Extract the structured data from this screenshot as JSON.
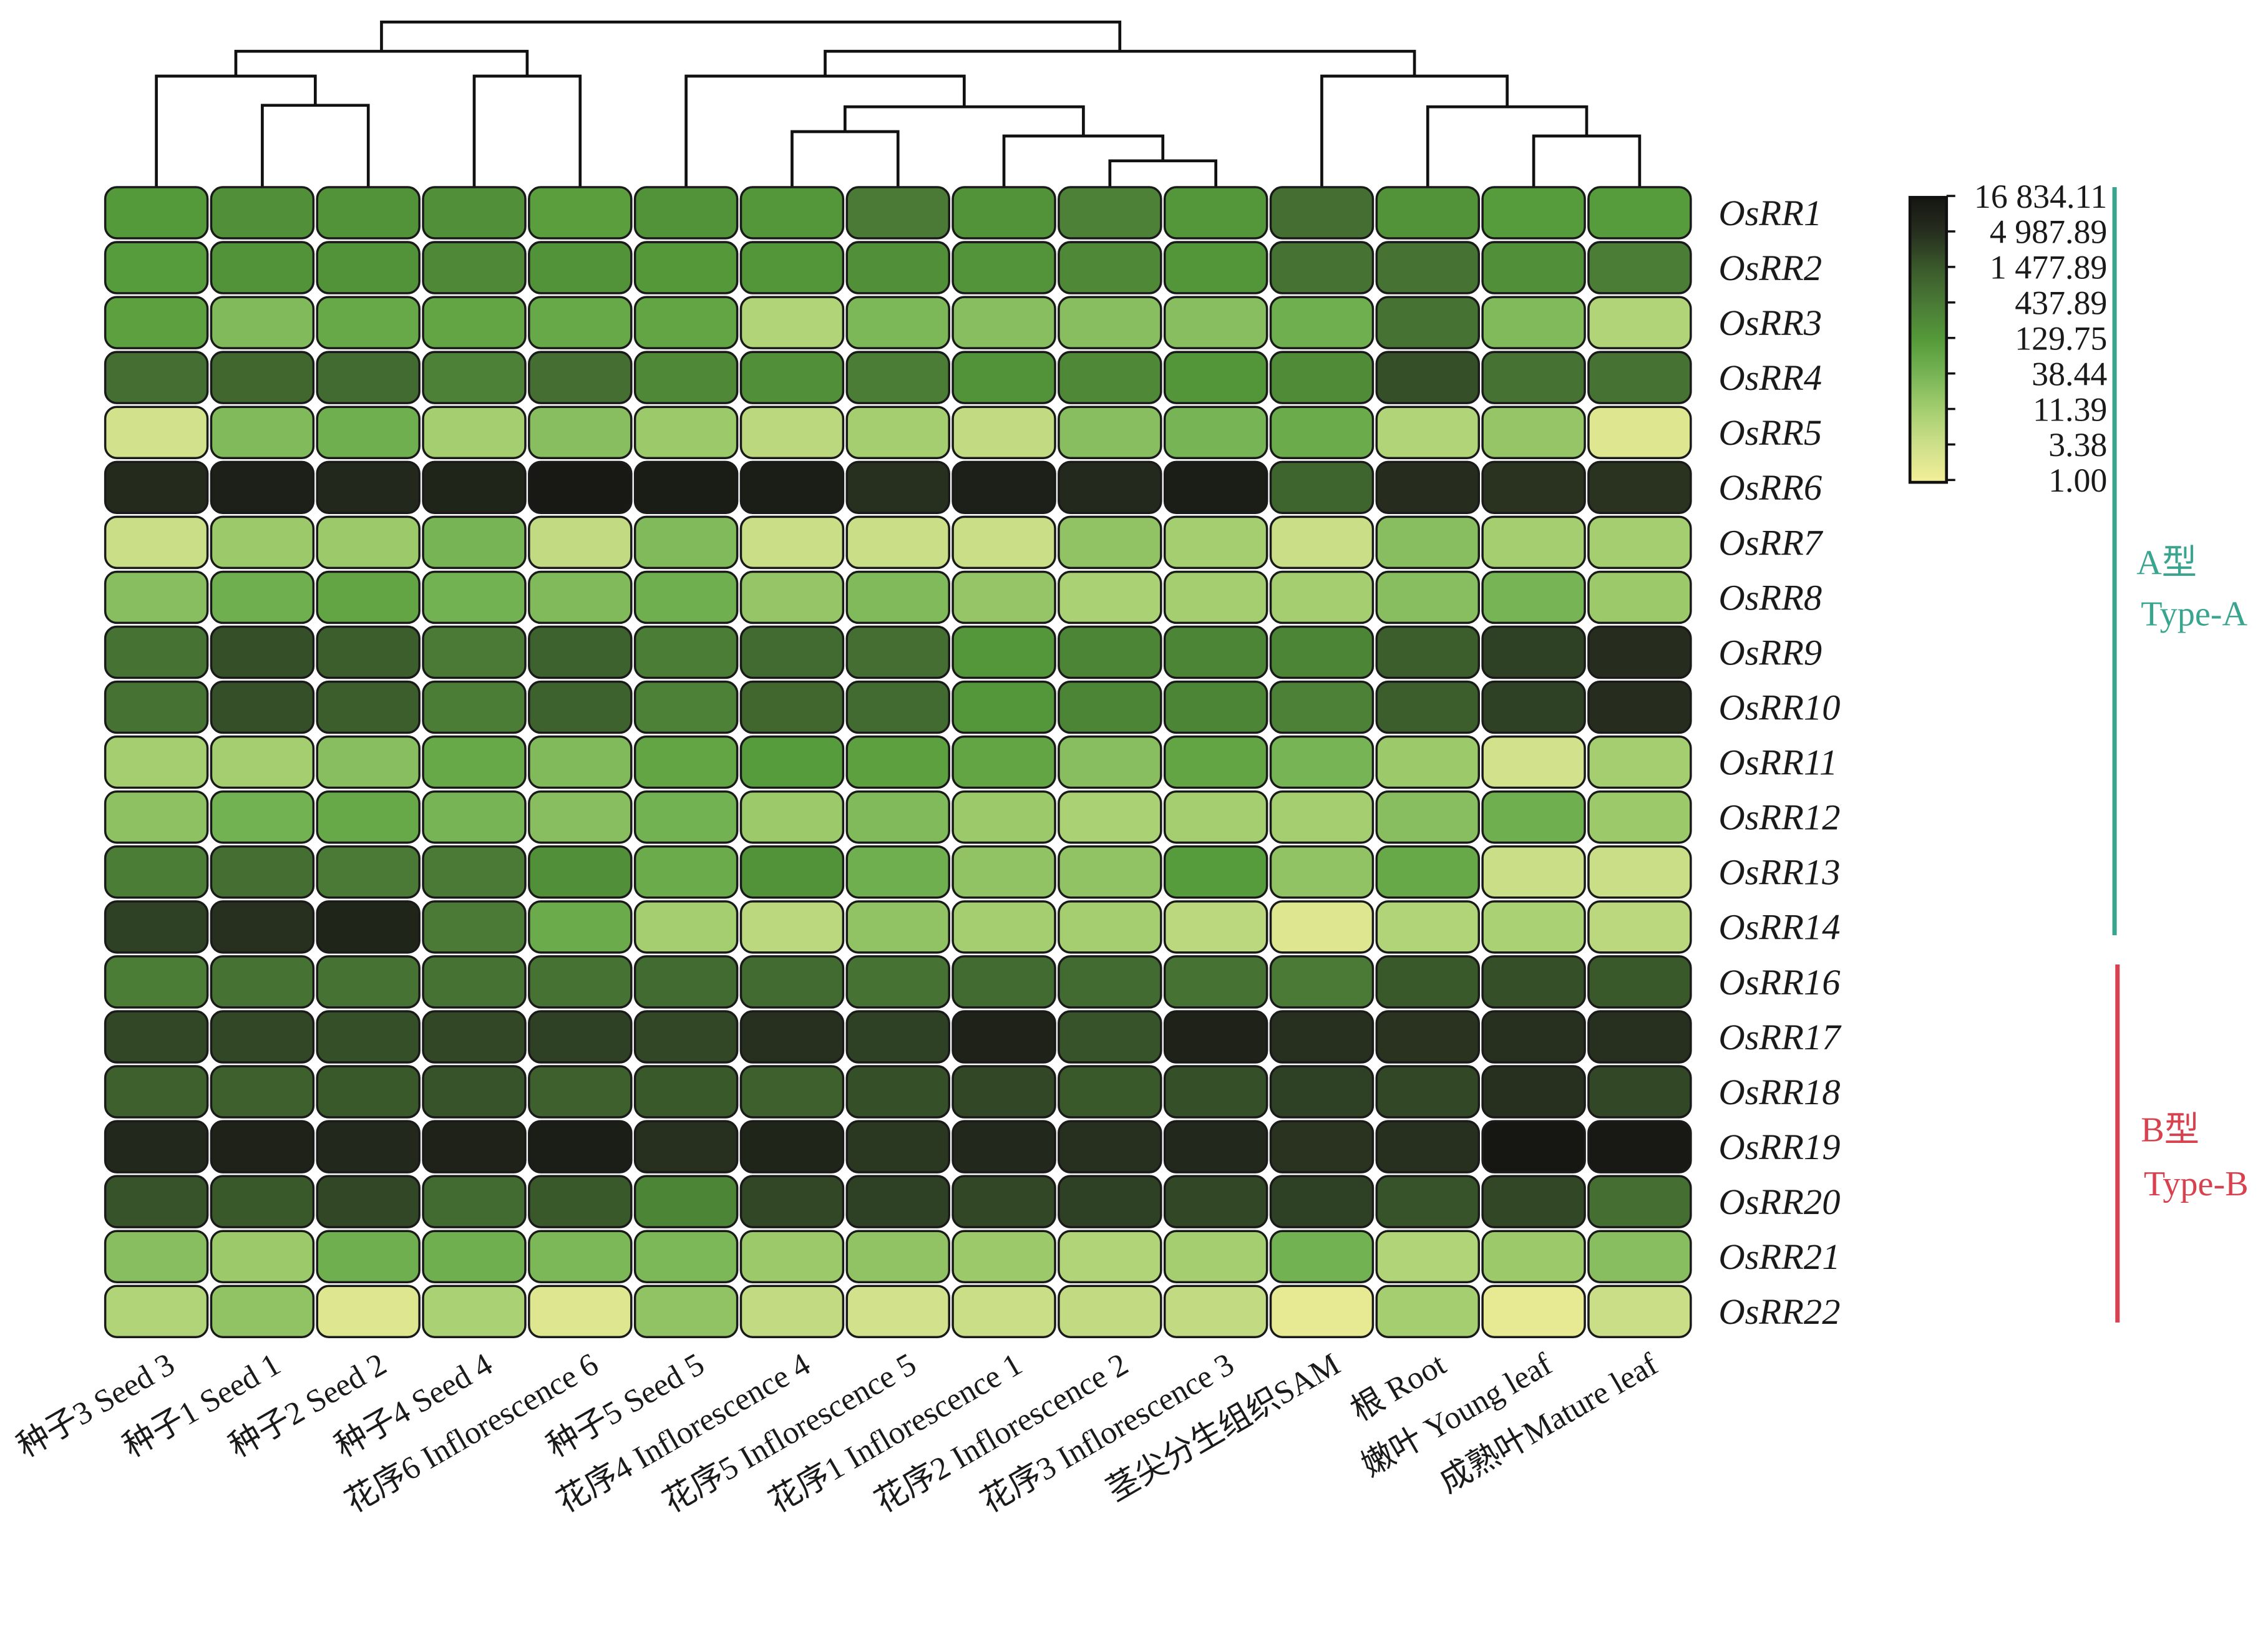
{
  "chart_data": {
    "type": "heatmap",
    "title": "",
    "columns": [
      "种子3 Seed 3",
      "种子1 Seed 1",
      "种子2 Seed 2",
      "种子4 Seed 4",
      "花序6 Inflorescence 6",
      "种子5 Seed 5",
      "花序4 Inflorescence 4",
      "花序5 Inflorescence 5",
      "花序1 Inflorescence 1",
      "花序2 Inflorescence 2",
      "花序3 Inflorescence 3",
      "茎尖分生组织SAM",
      "根 Root",
      "嫩叶 Young leaf",
      "成熟叶Mature leaf"
    ],
    "rows": [
      "OsRR1",
      "OsRR2",
      "OsRR3",
      "OsRR4",
      "OsRR5",
      "OsRR6",
      "OsRR7",
      "OsRR8",
      "OsRR9",
      "OsRR10",
      "OsRR11",
      "OsRR12",
      "OsRR13",
      "OsRR14",
      "OsRR16",
      "OsRR17",
      "OsRR18",
      "OsRR19",
      "OsRR20",
      "OsRR21",
      "OsRR22"
    ],
    "values": [
      [
        130,
        200,
        180,
        200,
        110,
        180,
        150,
        450,
        180,
        350,
        150,
        700,
        180,
        120,
        120
      ],
      [
        120,
        180,
        180,
        250,
        180,
        140,
        160,
        200,
        170,
        250,
        160,
        600,
        600,
        200,
        400
      ],
      [
        100,
        30,
        70,
        80,
        70,
        80,
        8,
        35,
        25,
        25,
        25,
        50,
        600,
        30,
        8
      ],
      [
        700,
        900,
        800,
        350,
        700,
        250,
        200,
        400,
        180,
        250,
        160,
        230,
        2000,
        600,
        600
      ],
      [
        3,
        30,
        50,
        12,
        25,
        15,
        6,
        12,
        5,
        25,
        40,
        60,
        8,
        18,
        2
      ],
      [
        6000,
        10000,
        7000,
        8000,
        14000,
        12000,
        11000,
        5000,
        10000,
        6500,
        11000,
        1000,
        5500,
        4500,
        4500
      ],
      [
        4,
        15,
        15,
        40,
        5,
        30,
        4,
        4,
        4,
        20,
        12,
        4,
        25,
        12,
        12
      ],
      [
        25,
        50,
        80,
        45,
        30,
        50,
        18,
        30,
        18,
        10,
        12,
        12,
        25,
        40,
        15
      ],
      [
        600,
        2000,
        1300,
        450,
        1100,
        400,
        800,
        700,
        150,
        300,
        300,
        300,
        1300,
        3000,
        5500
      ],
      [
        600,
        2000,
        1300,
        400,
        1100,
        350,
        900,
        800,
        150,
        300,
        300,
        350,
        1300,
        3000,
        5500
      ],
      [
        12,
        12,
        25,
        70,
        30,
        80,
        120,
        100,
        80,
        25,
        80,
        40,
        15,
        3,
        12
      ],
      [
        22,
        45,
        70,
        40,
        25,
        45,
        15,
        30,
        15,
        10,
        12,
        12,
        25,
        50,
        15
      ],
      [
        400,
        700,
        450,
        450,
        200,
        60,
        180,
        50,
        20,
        20,
        120,
        20,
        70,
        4,
        4
      ],
      [
        3000,
        5000,
        8000,
        450,
        60,
        12,
        6,
        20,
        12,
        12,
        6,
        2,
        8,
        10,
        6
      ],
      [
        400,
        600,
        600,
        600,
        600,
        800,
        800,
        600,
        800,
        800,
        600,
        450,
        1500,
        2000,
        1500
      ],
      [
        2500,
        2500,
        2000,
        2500,
        3000,
        2500,
        5000,
        3000,
        9000,
        1800,
        9000,
        5000,
        4500,
        5000,
        5000
      ],
      [
        1200,
        1200,
        1500,
        1800,
        1200,
        1500,
        1200,
        2000,
        2500,
        1500,
        2000,
        3000,
        2500,
        5000,
        2500
      ],
      [
        7000,
        9000,
        7000,
        9000,
        11000,
        5000,
        8000,
        4000,
        7000,
        5000,
        7000,
        4500,
        5000,
        16000,
        14000
      ],
      [
        1800,
        1500,
        2500,
        800,
        1500,
        300,
        2500,
        3000,
        2500,
        3000,
        2500,
        3000,
        1800,
        2500,
        700
      ],
      [
        25,
        15,
        50,
        50,
        35,
        35,
        15,
        20,
        15,
        8,
        12,
        45,
        8,
        15,
        25
      ],
      [
        8,
        20,
        2,
        10,
        2,
        20,
        5,
        3,
        4,
        5,
        5,
        1.5,
        12,
        1.5,
        4
      ]
    ],
    "colorbar": {
      "ticks": [
        16834.11,
        4987.89,
        1477.89,
        437.89,
        129.75,
        38.44,
        11.39,
        3.38,
        1.0
      ],
      "tick_labels": [
        "16 834.11",
        "4 987.89",
        "1 477.89",
        "437.89",
        "129.75",
        "38.44",
        "11.39",
        "3.38",
        "1.00"
      ],
      "range": [
        1.0,
        16834.11
      ],
      "scale": "log",
      "colors": [
        "#f3ef98",
        "#cfe08a",
        "#a6cf70",
        "#78b556",
        "#559a3a",
        "#4a7b36",
        "#3a5a2b",
        "#272f1f",
        "#151512"
      ]
    },
    "groups": [
      {
        "label_cn": "A型",
        "label_en": "Type-A",
        "color": "#3aa58f",
        "rows": [
          "OsRR1",
          "OsRR14"
        ]
      },
      {
        "label_cn": "B型",
        "label_en": "Type-B",
        "color": "#d8424f",
        "rows": [
          "OsRR16",
          "OsRR22"
        ]
      }
    ],
    "column_dendrogram": true,
    "legend_position": "top-right"
  }
}
